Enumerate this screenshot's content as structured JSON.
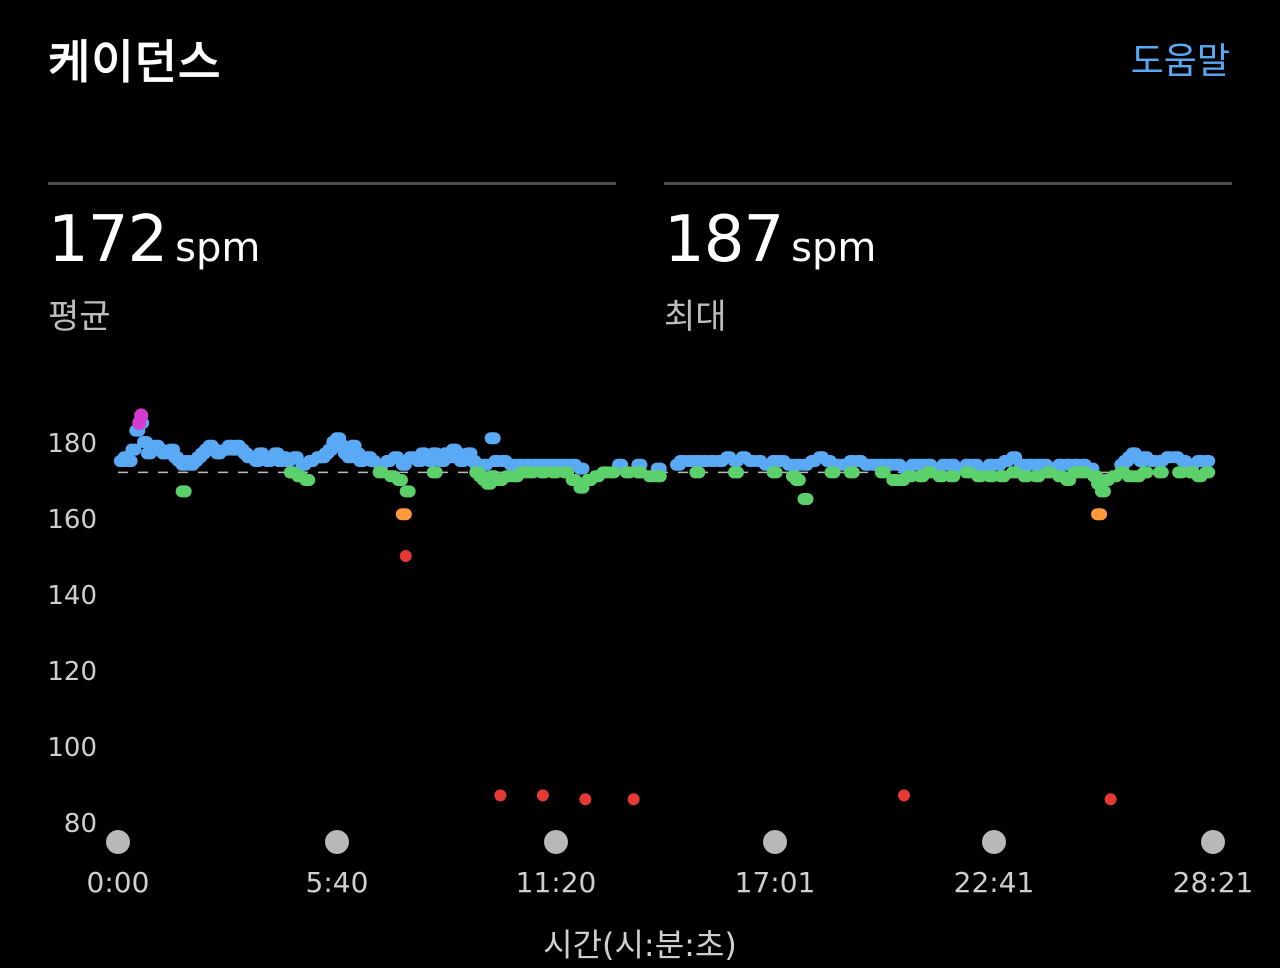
{
  "header": {
    "title": "케이던스",
    "help_label": "도움말"
  },
  "stats": [
    {
      "value": "172",
      "unit": "spm",
      "label": "평균"
    },
    {
      "value": "187",
      "unit": "spm",
      "label": "최대"
    }
  ],
  "colors": {
    "blue": "#5aa9f5",
    "green": "#5cd06a",
    "orange": "#ff9a3c",
    "red": "#e53935",
    "magenta": "#d63bd0",
    "avg_line": "#bbbbbb",
    "marker": "#b8b8b8"
  },
  "chart_data": {
    "type": "scatter",
    "xlabel": "시간(시:분:초)",
    "ylabel": "",
    "x_unit": "minutes",
    "xlim": [
      0,
      28.35
    ],
    "ylim": [
      78,
      190
    ],
    "y_ticks": [
      180,
      160,
      140,
      120,
      100,
      80
    ],
    "x_ticks": [
      "0:00",
      "5:40",
      "11:20",
      "17:01",
      "22:41",
      "28:21"
    ],
    "average_line": 172,
    "max": 187,
    "series": [
      {
        "color": "blue",
        "points": [
          [
            0.1,
            175
          ],
          [
            0.2,
            176
          ],
          [
            0.3,
            175
          ],
          [
            0.4,
            178
          ],
          [
            0.5,
            183
          ],
          [
            0.6,
            185
          ],
          [
            0.7,
            180
          ],
          [
            0.8,
            177
          ],
          [
            0.9,
            178
          ],
          [
            1.0,
            179
          ],
          [
            1.1,
            178
          ],
          [
            1.2,
            177
          ],
          [
            1.4,
            178
          ],
          [
            1.5,
            176
          ],
          [
            1.6,
            175
          ],
          [
            1.7,
            174
          ],
          [
            1.8,
            175
          ],
          [
            1.9,
            174
          ],
          [
            2.0,
            175
          ],
          [
            2.1,
            176
          ],
          [
            2.2,
            177
          ],
          [
            2.3,
            178
          ],
          [
            2.4,
            179
          ],
          [
            2.5,
            178
          ],
          [
            2.6,
            177
          ],
          [
            2.8,
            178
          ],
          [
            2.9,
            179
          ],
          [
            3.0,
            178
          ],
          [
            3.1,
            179
          ],
          [
            3.2,
            178
          ],
          [
            3.3,
            177
          ],
          [
            3.4,
            176
          ],
          [
            3.5,
            176
          ],
          [
            3.6,
            175
          ],
          [
            3.7,
            177
          ],
          [
            3.8,
            176
          ],
          [
            3.9,
            175
          ],
          [
            4.0,
            176
          ],
          [
            4.1,
            177
          ],
          [
            4.2,
            175
          ],
          [
            4.3,
            176
          ],
          [
            4.4,
            175
          ],
          [
            4.6,
            176
          ],
          [
            4.8,
            174
          ],
          [
            5.0,
            175
          ],
          [
            5.2,
            176
          ],
          [
            5.3,
            176
          ],
          [
            5.4,
            177
          ],
          [
            5.5,
            178
          ],
          [
            5.6,
            180
          ],
          [
            5.7,
            181
          ],
          [
            5.8,
            179
          ],
          [
            5.9,
            177
          ],
          [
            6.0,
            176
          ],
          [
            6.1,
            179
          ],
          [
            6.2,
            177
          ],
          [
            6.3,
            175
          ],
          [
            6.4,
            176
          ],
          [
            6.5,
            176
          ],
          [
            6.6,
            175
          ],
          [
            6.8,
            174
          ],
          [
            7.0,
            175
          ],
          [
            7.2,
            176
          ],
          [
            7.4,
            174
          ],
          [
            7.6,
            176
          ],
          [
            7.8,
            175
          ],
          [
            7.9,
            177
          ],
          [
            8.0,
            176
          ],
          [
            8.1,
            175
          ],
          [
            8.2,
            177
          ],
          [
            8.3,
            176
          ],
          [
            8.4,
            175
          ],
          [
            8.5,
            177
          ],
          [
            8.6,
            176
          ],
          [
            8.7,
            178
          ],
          [
            8.8,
            177
          ],
          [
            8.9,
            175
          ],
          [
            9.0,
            176
          ],
          [
            9.1,
            177
          ],
          [
            9.2,
            175
          ],
          [
            9.3,
            174
          ],
          [
            9.5,
            174
          ],
          [
            9.7,
            181
          ],
          [
            9.8,
            175
          ],
          [
            10.0,
            175
          ],
          [
            10.2,
            174
          ],
          [
            10.4,
            174
          ],
          [
            10.6,
            174
          ],
          [
            10.8,
            174
          ],
          [
            11.0,
            174
          ],
          [
            11.2,
            174
          ],
          [
            11.4,
            174
          ],
          [
            11.6,
            174
          ],
          [
            11.8,
            174
          ],
          [
            12.0,
            173
          ],
          [
            13.0,
            174
          ],
          [
            13.5,
            174
          ],
          [
            14.0,
            173
          ],
          [
            14.5,
            174
          ],
          [
            14.6,
            175
          ],
          [
            14.8,
            175
          ],
          [
            15.0,
            175
          ],
          [
            15.2,
            175
          ],
          [
            15.4,
            175
          ],
          [
            15.6,
            175
          ],
          [
            15.8,
            176
          ],
          [
            16.0,
            175
          ],
          [
            16.2,
            176
          ],
          [
            16.4,
            175
          ],
          [
            16.6,
            175
          ],
          [
            16.8,
            174
          ],
          [
            17.0,
            175
          ],
          [
            17.2,
            175
          ],
          [
            17.4,
            174
          ],
          [
            17.6,
            174
          ],
          [
            17.8,
            174
          ],
          [
            18.0,
            175
          ],
          [
            18.2,
            176
          ],
          [
            18.4,
            175
          ],
          [
            18.6,
            174
          ],
          [
            18.8,
            174
          ],
          [
            19.0,
            175
          ],
          [
            19.2,
            175
          ],
          [
            19.4,
            174
          ],
          [
            19.6,
            174
          ],
          [
            19.8,
            174
          ],
          [
            20.0,
            174
          ],
          [
            20.2,
            174
          ],
          [
            20.4,
            173
          ],
          [
            20.6,
            174
          ],
          [
            20.8,
            174
          ],
          [
            21.0,
            174
          ],
          [
            21.2,
            173
          ],
          [
            21.4,
            174
          ],
          [
            21.6,
            174
          ],
          [
            21.8,
            173
          ],
          [
            22.0,
            174
          ],
          [
            22.2,
            174
          ],
          [
            22.4,
            173
          ],
          [
            22.6,
            174
          ],
          [
            22.8,
            174
          ],
          [
            23.0,
            175
          ],
          [
            23.2,
            176
          ],
          [
            23.4,
            174
          ],
          [
            23.6,
            174
          ],
          [
            23.8,
            174
          ],
          [
            24.0,
            174
          ],
          [
            24.2,
            173
          ],
          [
            24.4,
            174
          ],
          [
            24.6,
            174
          ],
          [
            24.8,
            174
          ],
          [
            25.0,
            174
          ],
          [
            25.2,
            173
          ],
          [
            26.0,
            174
          ],
          [
            26.1,
            175
          ],
          [
            26.2,
            176
          ],
          [
            26.3,
            177
          ],
          [
            26.4,
            176
          ],
          [
            26.5,
            175
          ],
          [
            26.6,
            176
          ],
          [
            26.8,
            175
          ],
          [
            27.0,
            175
          ],
          [
            27.2,
            176
          ],
          [
            27.4,
            176
          ],
          [
            27.6,
            175
          ],
          [
            27.8,
            174
          ],
          [
            28.0,
            175
          ],
          [
            28.2,
            175
          ]
        ]
      },
      {
        "color": "green",
        "points": [
          [
            1.7,
            167
          ],
          [
            4.5,
            172
          ],
          [
            4.7,
            171
          ],
          [
            4.9,
            170
          ],
          [
            6.8,
            172
          ],
          [
            7.1,
            171
          ],
          [
            7.3,
            170
          ],
          [
            7.5,
            167
          ],
          [
            8.2,
            172
          ],
          [
            9.3,
            172
          ],
          [
            9.4,
            171
          ],
          [
            9.5,
            170
          ],
          [
            9.6,
            169
          ],
          [
            9.7,
            171
          ],
          [
            9.9,
            170
          ],
          [
            10.1,
            171
          ],
          [
            10.3,
            171
          ],
          [
            10.5,
            172
          ],
          [
            10.7,
            172
          ],
          [
            11.0,
            172
          ],
          [
            11.3,
            172
          ],
          [
            11.6,
            172
          ],
          [
            11.8,
            170
          ],
          [
            12.0,
            168
          ],
          [
            12.2,
            170
          ],
          [
            12.4,
            171
          ],
          [
            12.6,
            172
          ],
          [
            12.8,
            172
          ],
          [
            13.2,
            172
          ],
          [
            13.5,
            172
          ],
          [
            13.8,
            171
          ],
          [
            14.0,
            171
          ],
          [
            15.0,
            172
          ],
          [
            16.0,
            172
          ],
          [
            17.0,
            172
          ],
          [
            17.5,
            171
          ],
          [
            17.6,
            170
          ],
          [
            17.8,
            165
          ],
          [
            18.5,
            172
          ],
          [
            19.0,
            172
          ],
          [
            19.8,
            172
          ],
          [
            20.1,
            170
          ],
          [
            20.3,
            170
          ],
          [
            20.5,
            171
          ],
          [
            20.8,
            171
          ],
          [
            21.0,
            172
          ],
          [
            21.3,
            171
          ],
          [
            21.6,
            171
          ],
          [
            22.0,
            172
          ],
          [
            22.3,
            171
          ],
          [
            22.6,
            171
          ],
          [
            22.9,
            171
          ],
          [
            23.2,
            172
          ],
          [
            23.5,
            171
          ],
          [
            23.8,
            171
          ],
          [
            24.1,
            172
          ],
          [
            24.4,
            171
          ],
          [
            24.6,
            170
          ],
          [
            24.8,
            172
          ],
          [
            25.0,
            172
          ],
          [
            25.3,
            171
          ],
          [
            25.4,
            169
          ],
          [
            25.5,
            167
          ],
          [
            25.6,
            170
          ],
          [
            25.8,
            171
          ],
          [
            26.0,
            172
          ],
          [
            26.2,
            171
          ],
          [
            26.4,
            171
          ],
          [
            26.6,
            172
          ],
          [
            27.0,
            172
          ],
          [
            27.5,
            172
          ],
          [
            27.8,
            172
          ],
          [
            28.0,
            171
          ],
          [
            28.2,
            172
          ]
        ]
      },
      {
        "color": "orange",
        "points": [
          [
            7.4,
            161
          ],
          [
            25.4,
            161
          ]
        ]
      },
      {
        "color": "red",
        "points": [
          [
            7.45,
            150
          ],
          [
            9.9,
            87
          ],
          [
            11.0,
            87
          ],
          [
            12.1,
            86
          ],
          [
            13.35,
            86
          ],
          [
            20.35,
            87
          ],
          [
            25.7,
            86
          ]
        ]
      },
      {
        "color": "magenta",
        "points": [
          [
            0.6,
            187
          ],
          [
            0.55,
            185
          ]
        ]
      }
    ]
  }
}
